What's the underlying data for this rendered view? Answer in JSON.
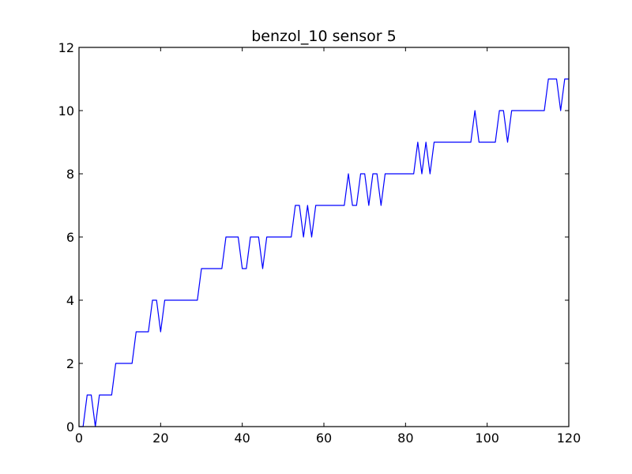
{
  "chart_data": {
    "type": "line",
    "title": "benzol_10 sensor 5",
    "xlabel": "",
    "ylabel": "",
    "xlim": [
      0,
      120
    ],
    "ylim": [
      0,
      12
    ],
    "xticks": [
      0,
      20,
      40,
      60,
      80,
      100,
      120
    ],
    "yticks": [
      0,
      2,
      4,
      6,
      8,
      10,
      12
    ],
    "grid": false,
    "line_color": "#0000ff",
    "series": [
      {
        "x": [
          0,
          1,
          2,
          3,
          4,
          5,
          6,
          7,
          8,
          9,
          10,
          11,
          12,
          13,
          14,
          15,
          16,
          17,
          18,
          19,
          20,
          21,
          22,
          23,
          24,
          25,
          26,
          27,
          28,
          29,
          30,
          31,
          32,
          33,
          34,
          35,
          36,
          37,
          38,
          39,
          40,
          41,
          42,
          43,
          44,
          45,
          46,
          47,
          48,
          49,
          50,
          51,
          52,
          53,
          54,
          55,
          56,
          57,
          58,
          59,
          60,
          61,
          62,
          63,
          64,
          65,
          66,
          67,
          68,
          69,
          70,
          71,
          72,
          73,
          74,
          75,
          76,
          77,
          78,
          79,
          80,
          81,
          82,
          83,
          84,
          85,
          86,
          87,
          88,
          89,
          90,
          91,
          92,
          93,
          94,
          95,
          96,
          97,
          98,
          99,
          100,
          101,
          102,
          103,
          104,
          105,
          106,
          107,
          108,
          109,
          110,
          111,
          112,
          113,
          114,
          115,
          116,
          117,
          118,
          119,
          120
        ],
        "y": [
          0,
          0,
          1,
          1,
          0,
          1,
          1,
          1,
          1,
          2,
          2,
          2,
          2,
          2,
          3,
          3,
          3,
          3,
          4,
          4,
          3,
          4,
          4,
          4,
          4,
          4,
          4,
          4,
          4,
          4,
          5,
          5,
          5,
          5,
          5,
          5,
          6,
          6,
          6,
          6,
          5,
          5,
          6,
          6,
          6,
          5,
          6,
          6,
          6,
          6,
          6,
          6,
          6,
          7,
          7,
          6,
          7,
          6,
          7,
          7,
          7,
          7,
          7,
          7,
          7,
          7,
          8,
          7,
          7,
          8,
          8,
          7,
          8,
          8,
          7,
          8,
          8,
          8,
          8,
          8,
          8,
          8,
          8,
          9,
          8,
          9,
          8,
          9,
          9,
          9,
          9,
          9,
          9,
          9,
          9,
          9,
          9,
          10,
          9,
          9,
          9,
          9,
          9,
          10,
          10,
          9,
          10,
          10,
          10,
          10,
          10,
          10,
          10,
          10,
          10,
          11,
          11,
          11,
          10,
          11,
          11
        ]
      }
    ]
  }
}
